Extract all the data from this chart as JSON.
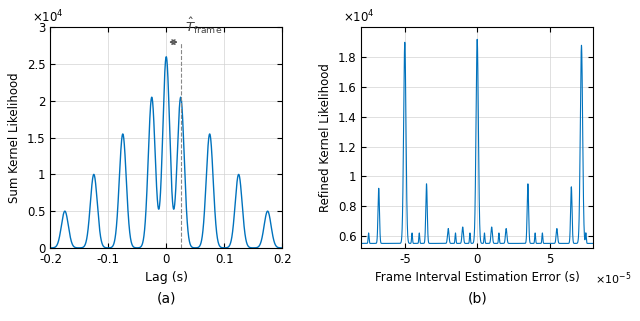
{
  "left": {
    "xlabel": "Lag (s)",
    "ylabel": "Sum Kernel Likelihood",
    "xlim": [
      -0.22,
      0.22
    ],
    "ylim": [
      0,
      30000
    ],
    "peak_positions": [
      -0.175,
      -0.125,
      -0.075,
      -0.025,
      0.0,
      0.025,
      0.075,
      0.125,
      0.175
    ],
    "peak_heights": [
      5000,
      10000,
      15500,
      20500,
      26000,
      20500,
      15500,
      10000,
      5000
    ],
    "sigma": 0.006,
    "line_color": "#0072bd",
    "bg_color": "#ffffff",
    "grid_color": "#d3d3d3"
  },
  "right": {
    "xlabel": "Frame Interval Estimation Error (s)",
    "ylabel": "Refined Kernel Likelihood",
    "xlim": [
      -8e-05,
      8e-05
    ],
    "ylim": [
      5200,
      20000
    ],
    "baseline": 5500,
    "line_color": "#0072bd",
    "bg_color": "#ffffff",
    "grid_color": "#d3d3d3"
  },
  "label_a": "(a)",
  "label_b": "(b)"
}
